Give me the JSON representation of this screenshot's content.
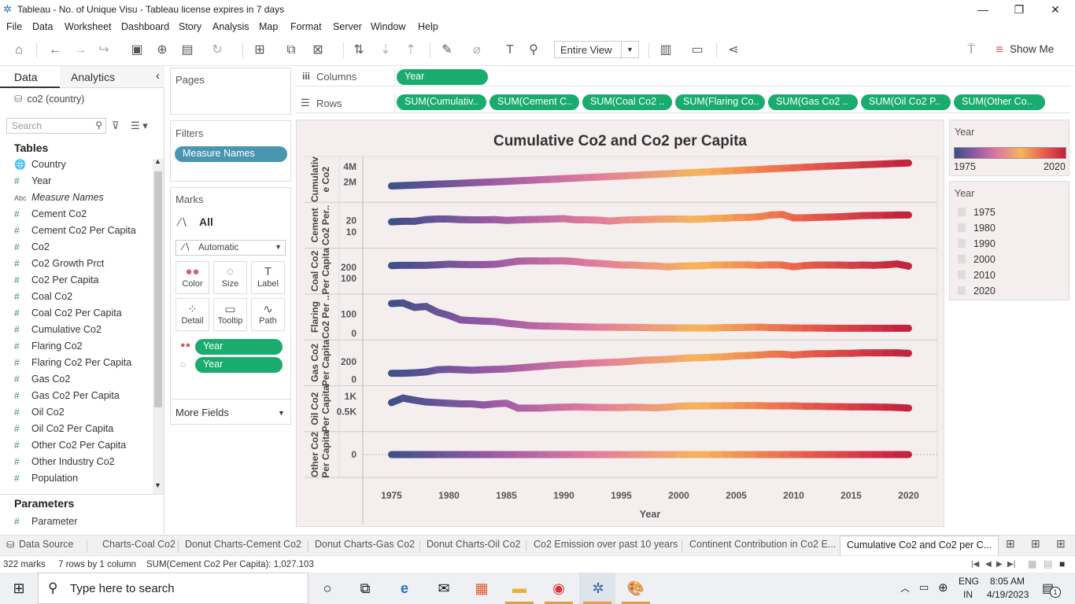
{
  "window": {
    "title": "Tableau - No. of Unique Visu - Tableau license expires in 7 days",
    "minimize": "—",
    "restore": "❐",
    "close": "✕"
  },
  "menu": [
    "File",
    "Data",
    "Worksheet",
    "Dashboard",
    "Story",
    "Analysis",
    "Map",
    "Format",
    "Server",
    "Window",
    "Help"
  ],
  "toolbar": {
    "fit_label": "Entire View",
    "show_me": "Show Me"
  },
  "datapane": {
    "tab_data": "Data",
    "tab_analytics": "Analytics",
    "collapse": "‹",
    "datasource": "co2 (country)",
    "search_placeholder": "Search",
    "tables_header": "Tables",
    "fields": [
      {
        "icon": "globe-icon",
        "type": "🌐",
        "label": "Country"
      },
      {
        "icon": "hash-icon",
        "type": "#",
        "label": "Year"
      },
      {
        "icon": "abc-icon",
        "type": "Abc",
        "label": "Measure Names",
        "italic": true
      },
      {
        "icon": "hash-icon",
        "type": "#",
        "label": "Cement Co2"
      },
      {
        "icon": "hash-icon",
        "type": "#",
        "label": "Cement Co2 Per Capita"
      },
      {
        "icon": "hash-icon",
        "type": "#",
        "label": "Co2"
      },
      {
        "icon": "hash-icon",
        "type": "#",
        "label": "Co2 Growth Prct"
      },
      {
        "icon": "hash-icon",
        "type": "#",
        "label": "Co2 Per Capita"
      },
      {
        "icon": "hash-icon",
        "type": "#",
        "label": "Coal Co2"
      },
      {
        "icon": "hash-icon",
        "type": "#",
        "label": "Coal Co2 Per Capita"
      },
      {
        "icon": "hash-icon",
        "type": "#",
        "label": "Cumulative Co2"
      },
      {
        "icon": "hash-icon",
        "type": "#",
        "label": "Flaring Co2"
      },
      {
        "icon": "hash-icon",
        "type": "#",
        "label": "Flaring Co2 Per Capita"
      },
      {
        "icon": "hash-icon",
        "type": "#",
        "label": "Gas Co2"
      },
      {
        "icon": "hash-icon",
        "type": "#",
        "label": "Gas Co2 Per Capita"
      },
      {
        "icon": "hash-icon",
        "type": "#",
        "label": "Oil Co2"
      },
      {
        "icon": "hash-icon",
        "type": "#",
        "label": "Oil Co2 Per Capita"
      },
      {
        "icon": "hash-icon",
        "type": "#",
        "label": "Other Co2 Per Capita"
      },
      {
        "icon": "hash-icon",
        "type": "#",
        "label": "Other Industry Co2"
      },
      {
        "icon": "hash-icon",
        "type": "#",
        "label": "Population"
      }
    ],
    "parameters_header": "Parameters",
    "parameters": [
      {
        "type": "#",
        "label": "Parameter"
      }
    ]
  },
  "cards": {
    "pages": "Pages",
    "filters": "Filters",
    "filter_pill": "Measure Names",
    "marks": "Marks",
    "marks_all": "All",
    "mark_type": "Automatic",
    "mark_buttons": [
      {
        "name": "color",
        "glyph": "●●",
        "label": "Color"
      },
      {
        "name": "size",
        "glyph": "◌",
        "label": "Size"
      },
      {
        "name": "label",
        "glyph": "T",
        "label": "Label"
      },
      {
        "name": "detail",
        "glyph": "⁘",
        "label": "Detail"
      },
      {
        "name": "tooltip",
        "glyph": "▭",
        "label": "Tooltip"
      },
      {
        "name": "path",
        "glyph": "∿",
        "label": "Path"
      }
    ],
    "mark_pills": [
      "Year",
      "Year"
    ],
    "more_fields": "More Fields"
  },
  "shelves": {
    "columns_label": "Columns",
    "columns_pill": "Year",
    "rows_label": "Rows",
    "rows_pills": [
      "SUM(Cumulativ..",
      "SUM(Cement C..",
      "SUM(Coal Co2 ..",
      "SUM(Flaring Co..",
      "SUM(Gas Co2 ..",
      "SUM(Oil Co2 P..",
      "SUM(Other Co.."
    ]
  },
  "chart_data": {
    "type": "line",
    "title": "Cumulative Co2 and Co2 per Capita",
    "xlabel": "Year",
    "x_ticks": [
      1975,
      1980,
      1985,
      1990,
      1995,
      2000,
      2005,
      2010,
      2015,
      2020
    ],
    "x": [
      1975,
      1976,
      1977,
      1978,
      1979,
      1980,
      1981,
      1982,
      1983,
      1984,
      1985,
      1986,
      1987,
      1988,
      1989,
      1990,
      1991,
      1992,
      1993,
      1994,
      1995,
      1996,
      1997,
      1998,
      1999,
      2000,
      2001,
      2002,
      2003,
      2004,
      2005,
      2006,
      2007,
      2008,
      2009,
      2010,
      2011,
      2012,
      2013,
      2014,
      2015,
      2016,
      2017,
      2018,
      2019,
      2020
    ],
    "xlim": [
      1972.5,
      2022.5
    ],
    "color_range": {
      "min": 1975,
      "max": 2020,
      "colors": [
        "#3b4f86",
        "#9a5aa5",
        "#e27c9e",
        "#f7b55b",
        "#e8604c",
        "#c1203f"
      ]
    },
    "series": [
      {
        "name": "Cumulativ\ne Co2",
        "ticks": [
          {
            "v": 4000000,
            "t": "4M"
          },
          {
            "v": 2000000,
            "t": "2M"
          }
        ],
        "ylim": [
          0,
          4700000
        ],
        "values": [
          1500000,
          1560000,
          1620000,
          1680000,
          1740000,
          1800000,
          1860000,
          1920000,
          1980000,
          2040000,
          2100000,
          2170000,
          2240000,
          2310000,
          2380000,
          2450000,
          2520000,
          2590000,
          2660000,
          2730000,
          2800000,
          2870000,
          2940000,
          3010000,
          3080000,
          3150000,
          3220000,
          3290000,
          3360000,
          3430000,
          3500000,
          3570000,
          3640000,
          3710000,
          3780000,
          3850000,
          3920000,
          3990000,
          4060000,
          4120000,
          4180000,
          4240000,
          4300000,
          4360000,
          4420000,
          4470000
        ]
      },
      {
        "name": "Cement\nCo2 Per..",
        "ticks": [
          {
            "v": 20,
            "t": "20"
          },
          {
            "v": 10,
            "t": "10"
          }
        ],
        "ylim": [
          0,
          32
        ],
        "values": [
          19,
          19.5,
          19.5,
          21,
          21.5,
          21.5,
          21,
          20.8,
          20.8,
          21,
          20.3,
          20.7,
          21,
          21.2,
          21.5,
          21.8,
          20.8,
          20.8,
          20.5,
          19.7,
          20.5,
          20.8,
          21,
          21.3,
          21.5,
          21.5,
          21.2,
          21.5,
          22,
          22.3,
          22.8,
          23,
          23.5,
          25,
          25.5,
          22.5,
          22.5,
          23,
          23.2,
          23.5,
          24,
          24.5,
          24.7,
          24.8,
          25,
          25
        ]
      },
      {
        "name": "Coal Co2\nPer Capita",
        "ticks": [
          {
            "v": 200,
            "t": "200"
          },
          {
            "v": 100,
            "t": "100"
          }
        ],
        "ylim": [
          0,
          330
        ],
        "values": [
          215,
          218,
          218,
          218,
          222,
          228,
          226,
          225,
          225,
          227,
          240,
          255,
          258,
          257,
          258,
          258,
          252,
          240,
          235,
          228,
          220,
          220,
          214,
          212,
          204,
          210,
          212,
          214,
          220,
          220,
          222,
          222,
          218,
          222,
          220,
          205,
          216,
          220,
          220,
          220,
          218,
          220,
          218,
          222,
          230,
          210
        ]
      },
      {
        "name": "Flaring\nCo2 Per ..",
        "ticks": [
          {
            "v": 100,
            "t": "100"
          },
          {
            "v": 0,
            "t": "0"
          }
        ],
        "ylim": [
          -10,
          180
        ],
        "values": [
          155,
          158,
          135,
          140,
          110,
          93,
          70,
          66,
          63,
          61,
          53,
          47,
          40,
          38,
          37,
          36,
          34,
          33,
          32,
          32,
          31,
          31,
          30,
          29,
          29,
          28,
          28,
          27,
          28,
          30,
          30,
          31,
          32,
          30,
          29,
          28,
          27,
          27,
          26,
          26,
          26,
          26,
          26,
          26,
          26,
          26
        ]
      },
      {
        "name": "Gas Co2\nPer Capita",
        "ticks": [
          {
            "v": 200,
            "t": "200"
          },
          {
            "v": 0,
            "t": "0"
          }
        ],
        "ylim": [
          -20,
          400
        ],
        "values": [
          70,
          70,
          75,
          85,
          110,
          115,
          110,
          105,
          110,
          115,
          120,
          130,
          140,
          150,
          160,
          170,
          175,
          185,
          190,
          195,
          200,
          210,
          220,
          225,
          230,
          240,
          245,
          250,
          255,
          260,
          270,
          275,
          280,
          290,
          290,
          280,
          290,
          295,
          295,
          300,
          300,
          305,
          305,
          305,
          305,
          300
        ]
      },
      {
        "name": "Oil Co2\nPer Capita",
        "ticks": [
          {
            "v": 1000,
            "t": "1K"
          },
          {
            "v": 500,
            "t": "0.5K"
          }
        ],
        "ylim": [
          0,
          1200
        ],
        "values": [
          800,
          950,
          880,
          820,
          800,
          780,
          760,
          760,
          720,
          760,
          780,
          620,
          620,
          620,
          640,
          650,
          660,
          650,
          640,
          640,
          640,
          650,
          640,
          630,
          650,
          680,
          690,
          690,
          695,
          695,
          700,
          700,
          700,
          690,
          690,
          690,
          680,
          680,
          670,
          665,
          660,
          660,
          655,
          650,
          640,
          620
        ]
      },
      {
        "name": "Other Co2\nPer Capita",
        "ticks": [
          {
            "v": 0,
            "t": "0"
          }
        ],
        "ylim": [
          -50,
          50
        ],
        "values": [
          0,
          0,
          0,
          0,
          0,
          0,
          0,
          0,
          0,
          0,
          0,
          0,
          0,
          0,
          0,
          0,
          0,
          0,
          0,
          0,
          0,
          0,
          0,
          0,
          0,
          0,
          0,
          0,
          0,
          0,
          0,
          0,
          0,
          0,
          0,
          0,
          0,
          0,
          0,
          0,
          0,
          0,
          0,
          0,
          0,
          0
        ]
      }
    ]
  },
  "legends": {
    "color_title": "Year",
    "color_min": "1975",
    "color_max": "2020",
    "year_title": "Year",
    "year_items": [
      "1975",
      "1980",
      "1990",
      "2000",
      "2010",
      "2020"
    ]
  },
  "sheet_tabs": {
    "data_source": "Data Source",
    "tabs": [
      "Charts-Coal Co2",
      "Donut Charts-Cement Co2",
      "Donut Charts-Gas Co2",
      "Donut Charts-Oil Co2",
      "Co2 Emission over past 10 years",
      "Continent Contribution in Co2 E..."
    ],
    "active": "Cumulative Co2 and Co2 per C..."
  },
  "status": {
    "marks": "322 marks",
    "rows_cols": "7 rows by 1 column",
    "sum": "SUM(Cement Co2 Per Capita): 1,027.103"
  },
  "taskbar": {
    "search_placeholder": "Type here to search",
    "lang": "ENG",
    "region": "IN",
    "time": "8:05 AM",
    "date": "4/19/2023",
    "notif_count": "1"
  }
}
